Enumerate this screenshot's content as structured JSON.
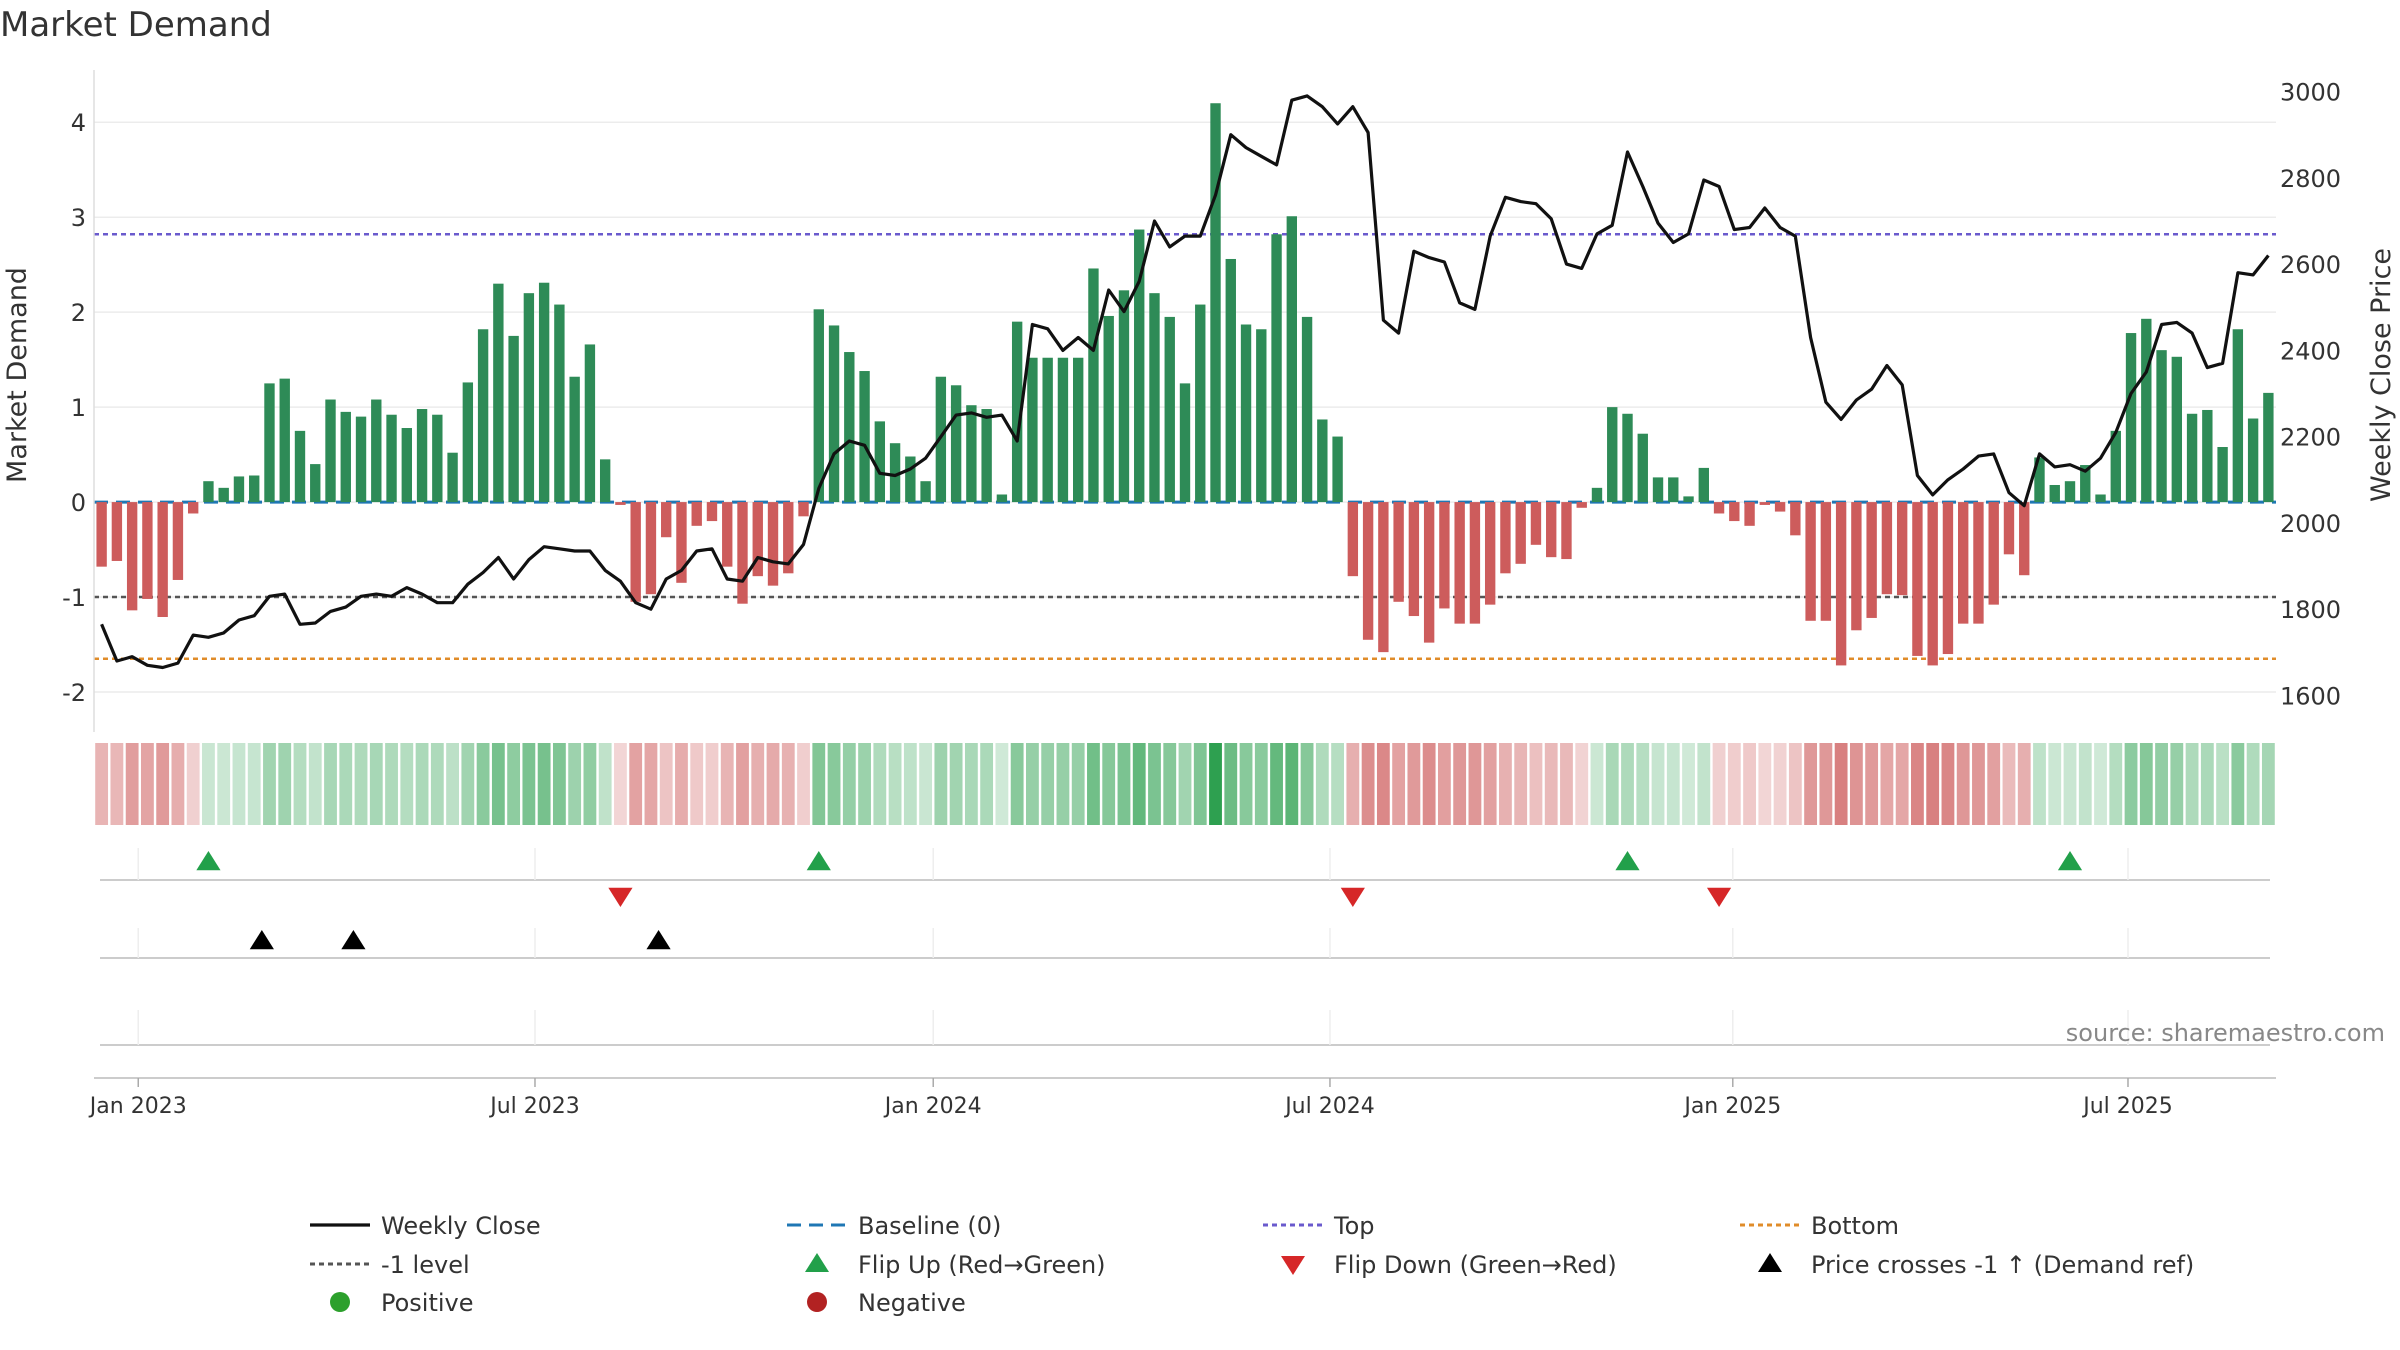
{
  "chart_data": {
    "type": "bar",
    "title": "Market Demand",
    "ylabel": "Market Demand",
    "ylabel_right": "Weekly Close Price",
    "source": "source: sharemaestro.com",
    "ylim": [
      -2.4,
      4.55
    ],
    "ylim_right": [
      1520,
      3050
    ],
    "yticks": [
      -2,
      -1,
      0,
      1,
      2,
      3,
      4
    ],
    "yticks_right": [
      1600,
      1800,
      2000,
      2200,
      2400,
      2600,
      2800,
      3000
    ],
    "x_tick_labels": [
      "Jan 2023",
      "Jul 2023",
      "Jan 2024",
      "Jul 2024",
      "Jan 2025",
      "Jul 2025"
    ],
    "x_tick_weeks": [
      2.9,
      28.9,
      55.0,
      81.0,
      107.4,
      133.3
    ],
    "reference_lines": {
      "baseline": 0,
      "top": 2.82,
      "minus_one": -1,
      "bottom": -1.65
    },
    "colors": {
      "positive_bar": "#2e8b57",
      "negative_bar": "#cd5c5c",
      "price_line": "#111111",
      "baseline": "#1f77b4",
      "top": "#6a5acd",
      "minus_one": "#555555",
      "bottom": "#e08c2a",
      "flip_up": "#22a04a",
      "flip_down": "#d62728",
      "price_cross": "#000000",
      "positive_dot": "#2ca02c",
      "negative_dot": "#b22222"
    },
    "demand": [
      -0.68,
      -0.62,
      -1.14,
      -1.02,
      -1.21,
      -0.82,
      -0.12,
      0.22,
      0.15,
      0.27,
      0.28,
      1.25,
      1.3,
      0.75,
      0.4,
      1.08,
      0.95,
      0.9,
      1.08,
      0.92,
      0.78,
      0.98,
      0.92,
      0.52,
      1.26,
      1.82,
      2.3,
      1.75,
      2.2,
      2.31,
      2.08,
      1.32,
      1.66,
      0.45,
      -0.03,
      -1.05,
      -0.97,
      -0.37,
      -0.85,
      -0.25,
      -0.2,
      -0.68,
      -1.07,
      -0.78,
      -0.88,
      -0.75,
      -0.15,
      2.03,
      1.86,
      1.58,
      1.38,
      0.85,
      0.62,
      0.48,
      0.22,
      1.32,
      1.23,
      1.02,
      0.98,
      0.08,
      1.9,
      1.52,
      1.52,
      1.52,
      1.52,
      2.46,
      1.96,
      2.23,
      2.87,
      2.2,
      1.95,
      1.25,
      2.08,
      4.2,
      2.56,
      1.87,
      1.82,
      2.82,
      3.01,
      1.95,
      0.87,
      0.69,
      -0.78,
      -1.45,
      -1.58,
      -1.05,
      -1.2,
      -1.48,
      -1.12,
      -1.28,
      -1.28,
      -1.08,
      -0.75,
      -0.65,
      -0.45,
      -0.58,
      -0.6,
      -0.06,
      0.15,
      1.0,
      0.93,
      0.72,
      0.26,
      0.26,
      0.06,
      0.36,
      -0.12,
      -0.2,
      -0.25,
      -0.03,
      -0.1,
      -0.35,
      -1.25,
      -1.25,
      -1.72,
      -1.35,
      -1.22,
      -0.97,
      -0.98,
      -1.62,
      -1.72,
      -1.6,
      -1.28,
      -1.28,
      -1.08,
      -0.55,
      -0.77,
      0.47,
      0.18,
      0.22,
      0.39,
      0.08,
      0.75,
      1.78,
      1.93,
      1.6,
      1.53,
      0.93,
      0.97,
      0.58,
      1.82,
      0.88,
      1.15
    ],
    "weekly_close": [
      1765,
      1680,
      1690,
      1670,
      1665,
      1675,
      1740,
      1735,
      1745,
      1775,
      1785,
      1830,
      1835,
      1765,
      1768,
      1795,
      1805,
      1830,
      1835,
      1830,
      1850,
      1835,
      1815,
      1815,
      1858,
      1885,
      1920,
      1870,
      1915,
      1945,
      1940,
      1935,
      1935,
      1890,
      1865,
      1815,
      1800,
      1870,
      1890,
      1935,
      1940,
      1870,
      1865,
      1920,
      1910,
      1905,
      1950,
      2080,
      2160,
      2190,
      2180,
      2115,
      2110,
      2125,
      2150,
      2200,
      2250,
      2255,
      2245,
      2250,
      2190,
      2460,
      2450,
      2400,
      2430,
      2400,
      2540,
      2490,
      2560,
      2700,
      2640,
      2665,
      2665,
      2760,
      2900,
      2870,
      2850,
      2830,
      2980,
      2990,
      2965,
      2925,
      2965,
      2905,
      2470,
      2440,
      2630,
      2615,
      2605,
      2510,
      2495,
      2665,
      2755,
      2745,
      2740,
      2705,
      2600,
      2590,
      2670,
      2690,
      2860,
      2780,
      2695,
      2650,
      2670,
      2795,
      2780,
      2680,
      2685,
      2730,
      2685,
      2665,
      2430,
      2280,
      2240,
      2285,
      2310,
      2365,
      2320,
      2110,
      2065,
      2100,
      2125,
      2155,
      2160,
      2070,
      2040,
      2160,
      2130,
      2135,
      2120,
      2150,
      2210,
      2300,
      2350,
      2460,
      2465,
      2440,
      2360,
      2370,
      2580,
      2575,
      2620
    ],
    "flip_up_weeks": [
      7.5,
      47.5,
      100.5,
      129.5
    ],
    "flip_down_weeks": [
      34.5,
      82.5,
      106.5
    ],
    "price_cross_weeks": [
      11,
      17,
      37
    ],
    "legend": [
      {
        "label": "Weekly Close",
        "kind": "line"
      },
      {
        "label": "Baseline (0)",
        "kind": "dash"
      },
      {
        "label": "Top",
        "kind": "dot"
      },
      {
        "label": "Bottom",
        "kind": "dot-orange"
      },
      {
        "label": "-1 level",
        "kind": "dot-gray"
      },
      {
        "label": "Flip Up (Red→Green)",
        "kind": "tri-up"
      },
      {
        "label": "Flip Down (Green→Red)",
        "kind": "tri-down"
      },
      {
        "label": "Price crosses -1 ↑ (Demand ref)",
        "kind": "tri-black"
      },
      {
        "label": "Positive",
        "kind": "dot-green"
      },
      {
        "label": "Negative",
        "kind": "dot-red"
      }
    ]
  }
}
